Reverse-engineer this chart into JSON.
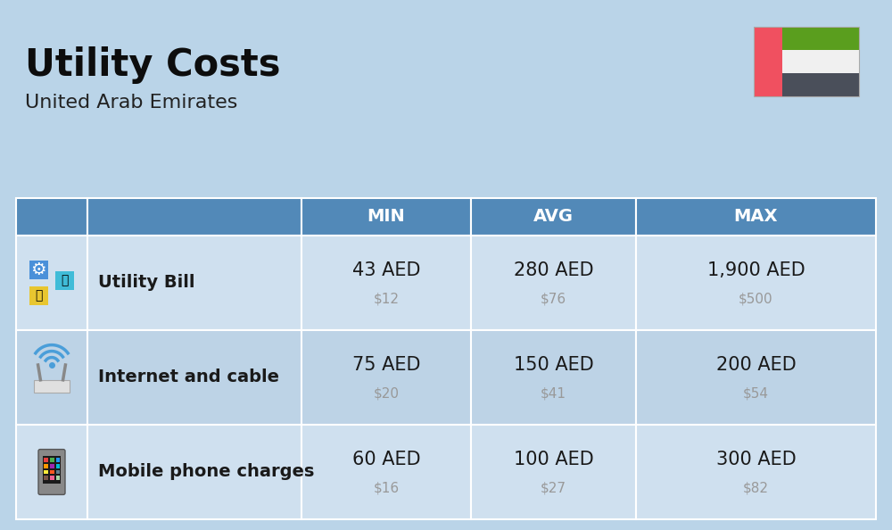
{
  "title": "Utility Costs",
  "subtitle": "United Arab Emirates",
  "background_color": "#bad4e8",
  "header_bg_color": "#5289b8",
  "header_text_color": "#ffffff",
  "row_bg_color_odd": "#cfe0ef",
  "row_bg_color_even": "#bdd3e6",
  "cell_text_color": "#1a1a1a",
  "usd_text_color": "#999999",
  "headers": [
    "MIN",
    "AVG",
    "MAX"
  ],
  "rows": [
    {
      "label": "Utility Bill",
      "min_aed": "43 AED",
      "min_usd": "$12",
      "avg_aed": "280 AED",
      "avg_usd": "$76",
      "max_aed": "1,900 AED",
      "max_usd": "$500"
    },
    {
      "label": "Internet and cable",
      "min_aed": "75 AED",
      "min_usd": "$20",
      "avg_aed": "150 AED",
      "avg_usd": "$41",
      "max_aed": "200 AED",
      "max_usd": "$54"
    },
    {
      "label": "Mobile phone charges",
      "min_aed": "60 AED",
      "min_usd": "$16",
      "avg_aed": "100 AED",
      "avg_usd": "$27",
      "max_aed": "300 AED",
      "max_usd": "$82"
    }
  ],
  "flag_red": "#f05060",
  "flag_green": "#5a9e1e",
  "flag_white": "#f0f0f0",
  "flag_dark": "#4a4f5a",
  "title_fontsize": 30,
  "subtitle_fontsize": 16,
  "header_fontsize": 14,
  "label_fontsize": 14,
  "aed_fontsize": 15,
  "usd_fontsize": 11
}
